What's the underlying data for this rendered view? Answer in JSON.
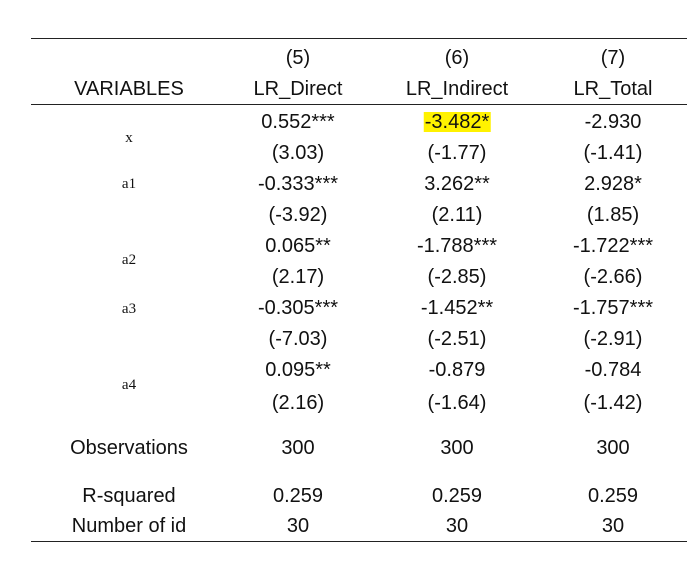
{
  "header": {
    "variables_label": "VARIABLES",
    "columns": [
      {
        "number": "(5)",
        "name": "LR_Direct"
      },
      {
        "number": "(6)",
        "name": "LR_Indirect"
      },
      {
        "number": "(7)",
        "name": "LR_Total"
      }
    ]
  },
  "rows": [
    {
      "variable": "x",
      "coef": [
        "0.552***",
        "-3.482*",
        "-2.930"
      ],
      "tstat": [
        "(3.03)",
        "(-1.77)",
        "(-1.41)"
      ]
    },
    {
      "variable": "a1",
      "coef": [
        "-0.333***",
        "3.262**",
        "2.928*"
      ],
      "tstat": [
        "(-3.92)",
        "(2.11)",
        "(1.85)"
      ]
    },
    {
      "variable": "a2",
      "coef": [
        "0.065**",
        "-1.788***",
        "-1.722***"
      ],
      "tstat": [
        "(2.17)",
        "(-2.85)",
        "(-2.66)"
      ]
    },
    {
      "variable": "a3",
      "coef": [
        "-0.305***",
        "-1.452**",
        "-1.757***"
      ],
      "tstat": [
        "(-7.03)",
        "(-2.51)",
        "(-2.91)"
      ]
    },
    {
      "variable": "a4",
      "coef": [
        "0.095**",
        "-0.879",
        "-0.784"
      ],
      "tstat": [
        "(2.16)",
        "(-1.64)",
        "(-1.42)"
      ]
    }
  ],
  "stats": [
    {
      "label": "Observations",
      "values": [
        "300",
        "300",
        "300"
      ]
    },
    {
      "label": "R-squared",
      "values": [
        "0.259",
        "0.259",
        "0.259"
      ]
    },
    {
      "label": "Number of id",
      "values": [
        "30",
        "30",
        "30"
      ]
    }
  ],
  "highlight_color": "#fff200"
}
